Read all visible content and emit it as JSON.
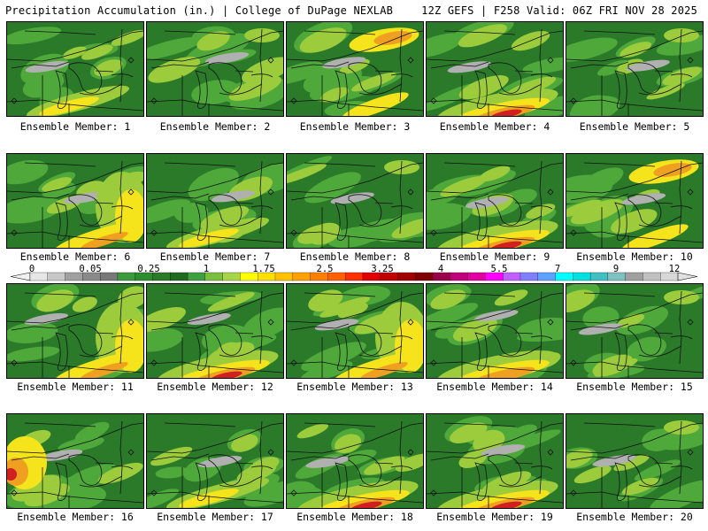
{
  "header": {
    "title": "Precipitation Accumulation (in.) | College of DuPage NEXLAB",
    "run_info": "12Z GEFS | F258 Valid: 06Z FRI NOV 28 2025"
  },
  "members": [
    {
      "label": "Ensemble Member: 1",
      "character": "moderate"
    },
    {
      "label": "Ensemble Member: 2",
      "character": "dry"
    },
    {
      "label": "Ensemble Member: 3",
      "character": "wet-northeast"
    },
    {
      "label": "Ensemble Member: 4",
      "character": "wet-south"
    },
    {
      "label": "Ensemble Member: 5",
      "character": "dry"
    },
    {
      "label": "Ensemble Member: 6",
      "character": "wet-east"
    },
    {
      "label": "Ensemble Member: 7",
      "character": "moderate"
    },
    {
      "label": "Ensemble Member: 8",
      "character": "dry"
    },
    {
      "label": "Ensemble Member: 9",
      "character": "wet-south"
    },
    {
      "label": "Ensemble Member: 10",
      "character": "wet-northeast"
    },
    {
      "label": "Ensemble Member: 11",
      "character": "wet-east"
    },
    {
      "label": "Ensemble Member: 12",
      "character": "wet-south"
    },
    {
      "label": "Ensemble Member: 13",
      "character": "wet-east"
    },
    {
      "label": "Ensemble Member: 14",
      "character": "band-south"
    },
    {
      "label": "Ensemble Member: 15",
      "character": "dry"
    },
    {
      "label": "Ensemble Member: 16",
      "character": "wet-west"
    },
    {
      "label": "Ensemble Member: 17",
      "character": "moderate"
    },
    {
      "label": "Ensemble Member: 18",
      "character": "wet-south"
    },
    {
      "label": "Ensemble Member: 19",
      "character": "wet-south"
    },
    {
      "label": "Ensemble Member: 20",
      "character": "dry"
    }
  ],
  "colorbar": {
    "labels": [
      "0",
      "0.05",
      "0.25",
      "1",
      "1.75",
      "2.5",
      "3.25",
      "4",
      "5.5",
      "7",
      "9",
      "12"
    ],
    "colors": [
      "#e6e6e6",
      "#c8c8c8",
      "#a0a0a0",
      "#8a8a8a",
      "#787878",
      "#3c9a3c",
      "#2e8b2e",
      "#2a7a2a",
      "#1f6b1f",
      "#40a040",
      "#7cbf3c",
      "#a8d44a",
      "#ffff00",
      "#ffe000",
      "#ffc000",
      "#ffa000",
      "#ff8000",
      "#ff6000",
      "#ff3000",
      "#e00000",
      "#c00000",
      "#a00000",
      "#800000",
      "#9a004a",
      "#c0007a",
      "#e000a0",
      "#ff00ff",
      "#c060ff",
      "#8080ff",
      "#60a0ff",
      "#00ffff",
      "#00e0e0",
      "#40c0c0",
      "#80c0c0",
      "#a0a0a0",
      "#c0c0c0",
      "#d8d8d8"
    ],
    "palette_stops": {
      "dry": "#2a7a2a",
      "light": "#4ea83a",
      "moderate": "#9ccb3c",
      "heavy": "#f5e31c",
      "very_heavy": "#f0a020",
      "extreme": "#d02020",
      "snowlike_gray": "#b0b0b0"
    }
  }
}
